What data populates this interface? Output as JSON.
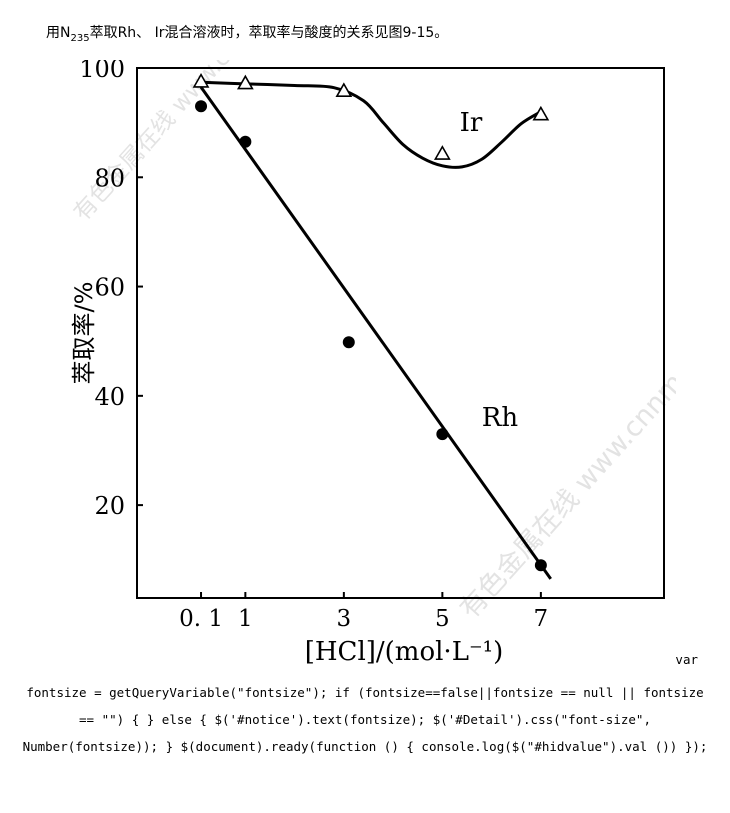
{
  "caption": {
    "prefix": "用N",
    "subscript": "235",
    "suffix": "萃取Rh、 Ir混合溶液时，萃取率与酸度的关系见图9-15。"
  },
  "watermarks": [
    "有色金属在线 www.cnnmol.com",
    "有色金属在线 www.cnnmol.com"
  ],
  "code_text": {
    "first": "var",
    "rest": "fontsize = getQueryVariable(\"fontsize\"); if (fontsize==false||fontsize == null || fontsize == \"\") { } else { $('#notice').text(fontsize); $('#Detail').css(\"font-size\", Number(fontsize)); } $(document).ready(function () { console.log($(\"#hidvalue\").val ()) });"
  },
  "chart_data": {
    "type": "scatter",
    "xlabel": "[HCl]/(mol·L⁻¹)",
    "ylabel": "萃取率/%",
    "xlim": [
      -1.2,
      9.5
    ],
    "ylim": [
      3,
      100
    ],
    "x_ticks": [
      0.1,
      1,
      3,
      5,
      7
    ],
    "x_tick_labels": [
      "0. 1",
      "1",
      "3",
      "5",
      "7"
    ],
    "y_ticks": [
      20,
      40,
      60,
      80,
      100
    ],
    "y_tick_labels": [
      "20",
      "40",
      "60",
      "80",
      "100"
    ],
    "grid": false,
    "series": [
      {
        "name": "Ir",
        "marker": "open-triangle",
        "x": [
          0.1,
          1,
          3,
          5,
          7
        ],
        "y": [
          97.5,
          97.2,
          95.8,
          84.3,
          91.5
        ],
        "curve_x": [
          0.1,
          1,
          2,
          2.8,
          3.4,
          3.8,
          4.2,
          4.6,
          5.0,
          5.4,
          5.8,
          6.2,
          6.6,
          7.0
        ],
        "curve_y": [
          97.4,
          97.1,
          96.8,
          96.4,
          94.0,
          90.0,
          86.0,
          83.5,
          82.1,
          81.9,
          83.3,
          86.4,
          89.8,
          92.0
        ]
      },
      {
        "name": "Rh",
        "marker": "filled-circle",
        "x": [
          0.1,
          1,
          3.1,
          5,
          7
        ],
        "y": [
          93.0,
          86.5,
          49.8,
          33.0,
          9.0
        ],
        "fit_x": [
          0.1,
          7.2
        ],
        "fit_y": [
          96.5,
          6.5
        ]
      }
    ]
  }
}
